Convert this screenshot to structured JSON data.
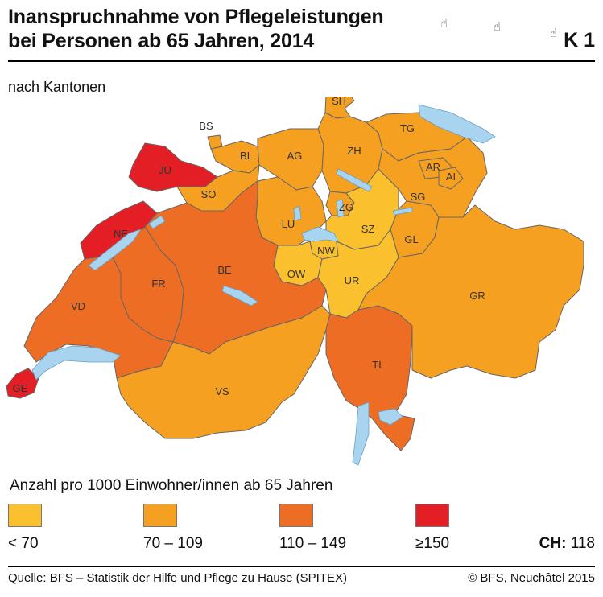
{
  "title_line1": "Inanspruchnahme von Pflegeleistungen",
  "title_line2": "bei Personen ab 65 Jahren, 2014",
  "figure_number": "K 1",
  "subtitle": "nach Kantonen",
  "colors": {
    "lt70": "#fbc02d",
    "c70_109": "#f5a020",
    "c110_149": "#ed6d24",
    "ge150": "#e31e24",
    "lake": "#a9d4f0",
    "border": "#666666"
  },
  "cantons": [
    {
      "code": "SH",
      "class": "c70_109"
    },
    {
      "code": "BS",
      "class": "c70_109"
    },
    {
      "code": "BL",
      "class": "c70_109"
    },
    {
      "code": "AG",
      "class": "c70_109"
    },
    {
      "code": "ZH",
      "class": "c70_109"
    },
    {
      "code": "TG",
      "class": "c70_109"
    },
    {
      "code": "AR",
      "class": "c70_109"
    },
    {
      "code": "AI",
      "class": "c70_109"
    },
    {
      "code": "SG",
      "class": "c70_109"
    },
    {
      "code": "JU",
      "class": "ge150"
    },
    {
      "code": "SO",
      "class": "c70_109"
    },
    {
      "code": "NE",
      "class": "ge150"
    },
    {
      "code": "LU",
      "class": "c70_109"
    },
    {
      "code": "ZG",
      "class": "c70_109"
    },
    {
      "code": "SZ",
      "class": "lt70"
    },
    {
      "code": "GL",
      "class": "c70_109"
    },
    {
      "code": "NW",
      "class": "lt70"
    },
    {
      "code": "OW",
      "class": "lt70"
    },
    {
      "code": "UR",
      "class": "lt70"
    },
    {
      "code": "BE",
      "class": "c110_149"
    },
    {
      "code": "FR",
      "class": "c110_149"
    },
    {
      "code": "VD",
      "class": "c110_149"
    },
    {
      "code": "GR",
      "class": "c70_109"
    },
    {
      "code": "TI",
      "class": "c110_149"
    },
    {
      "code": "VS",
      "class": "c70_109"
    },
    {
      "code": "GE",
      "class": "ge150"
    }
  ],
  "legend": {
    "title": "Anzahl pro 1000 Einwohner/innen ab 65 Jahren",
    "items": [
      {
        "label": "< 70",
        "class": "lt70"
      },
      {
        "label": "70 – 109",
        "class": "c70_109"
      },
      {
        "label": "110 – 149",
        "class": "c110_149"
      },
      {
        "label": "≥150",
        "class": "ge150"
      }
    ]
  },
  "ch_label": "CH:",
  "ch_value": "118",
  "source": "Quelle: BFS – Statistik der Hilfe und Pflege zu Hause (SPITEX)",
  "copyright": "© BFS, Neuchâtel 2015"
}
